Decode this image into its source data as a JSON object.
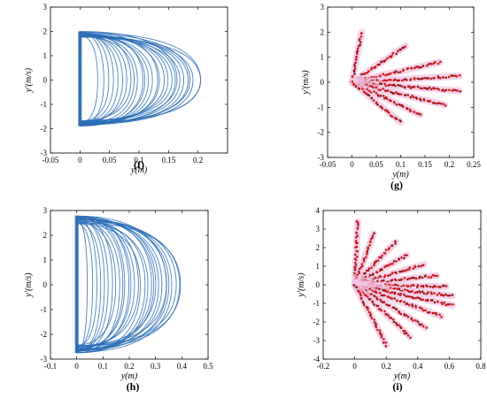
{
  "panels": [
    {
      "id": "f",
      "label": "(f)",
      "type": "line",
      "xlabel": "y(m)",
      "ylabel": "y'(m/s)",
      "xlim": [
        -0.05,
        0.25
      ],
      "ylim": [
        -3,
        3
      ],
      "xticks": [
        "-0.05",
        "0",
        "0.05",
        "0.1",
        "0.15",
        "0.2"
      ],
      "xtick_values": [
        -0.05,
        0,
        0.05,
        0.1,
        0.15,
        0.2
      ],
      "yticks": [
        "-3",
        "-2",
        "-1",
        "0",
        "1",
        "2",
        "3"
      ],
      "ytick_values": [
        -3,
        -2,
        -1,
        0,
        1,
        2,
        3
      ],
      "grid": false,
      "color": "#2a6db5",
      "chart_data": {
        "type": "line",
        "description_values": {
          "orbit_x_range": [
            0,
            0.21
          ],
          "orbit_y_range": [
            -1.9,
            2.0
          ],
          "outer_orbit_xmax": 0.21,
          "inner_orbit_xmax": 0.03,
          "orbit_count": 28
        }
      }
    },
    {
      "id": "g",
      "label": "(g)",
      "type": "scatter",
      "xlabel": "y(m)",
      "ylabel": "y'(m/s)",
      "xlim": [
        -0.05,
        0.25
      ],
      "ylim": [
        -3,
        3
      ],
      "xticks": [
        "-0.05",
        "0",
        "0.05",
        "0.1",
        "0.15",
        "0.2",
        "0.25"
      ],
      "xtick_values": [
        -0.05,
        0,
        0.05,
        0.1,
        0.15,
        0.2,
        0.25
      ],
      "yticks": [
        "-3",
        "-2",
        "-1",
        "0",
        "1",
        "2",
        "3"
      ],
      "ytick_values": [
        -3,
        -2,
        -1,
        0,
        1,
        2,
        3
      ],
      "grid": false,
      "color": "#d01818",
      "halo_color": "#f2c6e6",
      "chart_data": {
        "type": "scatter",
        "rays": [
          {
            "end": [
              0.02,
              2.0
            ]
          },
          {
            "end": [
              0.11,
              1.45
            ]
          },
          {
            "end": [
              0.18,
              0.8
            ]
          },
          {
            "end": [
              0.22,
              0.25
            ]
          },
          {
            "end": [
              0.22,
              -0.35
            ]
          },
          {
            "end": [
              0.19,
              -0.9
            ]
          },
          {
            "end": [
              0.14,
              -1.3
            ]
          },
          {
            "end": [
              0.1,
              -1.6
            ]
          }
        ],
        "ray_start": [
          0,
          0
        ]
      }
    },
    {
      "id": "h",
      "label": "(h)",
      "type": "line",
      "xlabel": "y(m)",
      "ylabel": "y'(m/s)",
      "xlim": [
        -0.1,
        0.5
      ],
      "ylim": [
        -3,
        3
      ],
      "xticks": [
        "-0.1",
        "0",
        "0.1",
        "0.2",
        "0.3",
        "0.4",
        "0.5"
      ],
      "xtick_values": [
        -0.1,
        0,
        0.1,
        0.2,
        0.3,
        0.4,
        0.5
      ],
      "yticks": [
        "-3",
        "-2",
        "-1",
        "0",
        "1",
        "2",
        "3"
      ],
      "ytick_values": [
        -3,
        -2,
        -1,
        0,
        1,
        2,
        3
      ],
      "grid": false,
      "color": "#2a6db5",
      "chart_data": {
        "type": "line",
        "description_values": {
          "orbit_x_range": [
            0,
            0.41
          ],
          "orbit_y_range": [
            -2.75,
            2.8
          ],
          "outer_orbit_xmax": 0.41,
          "inner_orbit_xmax": 0.04,
          "orbit_count": 30
        }
      }
    },
    {
      "id": "i",
      "label": "(i)",
      "type": "scatter",
      "xlabel": "y(m)",
      "ylabel": "y'(m/s)",
      "xlim": [
        -0.2,
        0.8
      ],
      "ylim": [
        -4,
        4
      ],
      "xticks": [
        "-0.2",
        "0",
        "0.2",
        "0.4",
        "0.6",
        "0.8"
      ],
      "xtick_values": [
        -0.2,
        0,
        0.2,
        0.4,
        0.6,
        0.8
      ],
      "yticks": [
        "-4",
        "-3",
        "-2",
        "-1",
        "0",
        "1",
        "2",
        "3",
        "4"
      ],
      "ytick_values": [
        -4,
        -3,
        -2,
        -1,
        0,
        1,
        2,
        3,
        4
      ],
      "grid": false,
      "color": "#d01818",
      "halo_color": "#f2c6e6",
      "chart_data": {
        "type": "scatter",
        "rays": [
          {
            "end": [
              0.02,
              3.4
            ]
          },
          {
            "end": [
              0.12,
              2.75
            ]
          },
          {
            "end": [
              0.26,
              2.3
            ]
          },
          {
            "end": [
              0.33,
              1.6
            ]
          },
          {
            "end": [
              0.44,
              1.1
            ]
          },
          {
            "end": [
              0.52,
              0.5
            ]
          },
          {
            "end": [
              0.58,
              -0.1
            ]
          },
          {
            "end": [
              0.62,
              -0.6
            ]
          },
          {
            "end": [
              0.62,
              -1.1
            ]
          },
          {
            "end": [
              0.55,
              -1.7
            ]
          },
          {
            "end": [
              0.45,
              -2.3
            ]
          },
          {
            "end": [
              0.35,
              -2.8
            ]
          },
          {
            "end": [
              0.2,
              -3.25
            ]
          }
        ],
        "ray_start": [
          0,
          0
        ]
      }
    }
  ]
}
